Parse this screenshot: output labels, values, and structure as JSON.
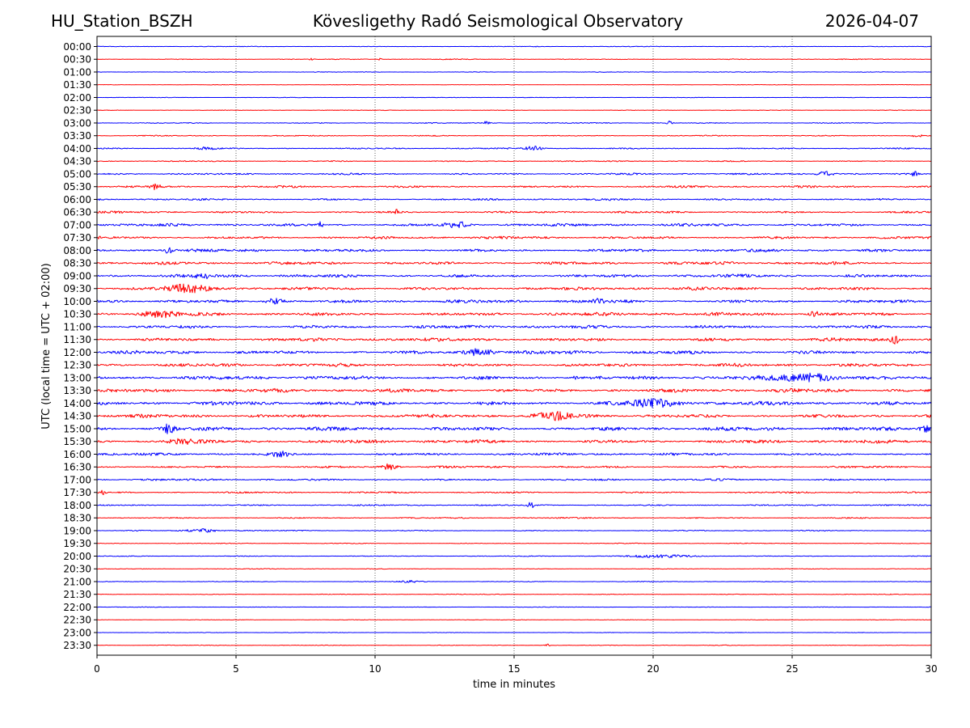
{
  "header": {
    "station": "HU_Station_BSZH",
    "observatory": "Kövesligethy Radó Seismological Observatory",
    "date": "2026-04-07"
  },
  "chart_data": {
    "type": "line",
    "title": "Kövesligethy Radó Seismological Observatory",
    "xlabel": "time in minutes",
    "ylabel": "UTC (local time = UTC + 02:00)",
    "xlim": [
      0,
      30
    ],
    "x_ticks": [
      0,
      5,
      10,
      15,
      20,
      25,
      30
    ],
    "grid": "vertical dotted lines at 5-minute ticks",
    "colors": [
      "#0000ff",
      "#ff0000"
    ],
    "row_labels": [
      "00:00",
      "00:30",
      "01:00",
      "01:30",
      "02:00",
      "02:30",
      "03:00",
      "03:30",
      "04:00",
      "04:30",
      "05:00",
      "05:30",
      "06:00",
      "06:30",
      "07:00",
      "07:30",
      "08:00",
      "08:30",
      "09:00",
      "09:30",
      "10:00",
      "10:30",
      "11:00",
      "11:30",
      "12:00",
      "12:30",
      "13:00",
      "13:30",
      "14:00",
      "14:30",
      "15:00",
      "15:30",
      "16:00",
      "16:30",
      "17:00",
      "17:30",
      "18:00",
      "18:30",
      "19:00",
      "19:30",
      "20:00",
      "20:30",
      "21:00",
      "21:30",
      "22:00",
      "22:30",
      "23:00",
      "23:30"
    ],
    "noise_amplitude": [
      0.8,
      1.0,
      0.8,
      0.6,
      0.7,
      0.7,
      1.2,
      1.3,
      1.6,
      1.3,
      2.2,
      2.5,
      2.4,
      2.6,
      3.6,
      3.2,
      3.6,
      3.6,
      3.8,
      4.0,
      4.0,
      4.2,
      4.0,
      4.2,
      4.4,
      4.0,
      4.6,
      4.6,
      4.6,
      4.6,
      4.8,
      4.2,
      3.2,
      2.6,
      2.4,
      2.0,
      1.8,
      1.6,
      1.3,
      1.0,
      1.0,
      0.8,
      0.9,
      0.9,
      0.7,
      0.7,
      0.7,
      0.8
    ],
    "events": [
      {
        "row": 0,
        "minute": 15.8,
        "amp": 2,
        "width": 0.05
      },
      {
        "row": 1,
        "minute": 7.7,
        "amp": 3,
        "width": 0.05
      },
      {
        "row": 1,
        "minute": 10.2,
        "amp": 2.5,
        "width": 0.1
      },
      {
        "row": 6,
        "minute": 14,
        "amp": 4,
        "width": 0.1
      },
      {
        "row": 6,
        "minute": 20.6,
        "amp": 5,
        "width": 0.1
      },
      {
        "row": 7,
        "minute": 29.5,
        "amp": 3,
        "width": 0.2
      },
      {
        "row": 8,
        "minute": 3.9,
        "amp": 3,
        "width": 0.4
      },
      {
        "row": 8,
        "minute": 15.7,
        "amp": 5,
        "width": 0.3
      },
      {
        "row": 10,
        "minute": 26.2,
        "amp": 6,
        "width": 0.3
      },
      {
        "row": 10,
        "minute": 29.4,
        "amp": 7,
        "width": 0.1
      },
      {
        "row": 11,
        "minute": 2.1,
        "amp": 6,
        "width": 0.2
      },
      {
        "row": 13,
        "minute": 10.8,
        "amp": 5,
        "width": 0.1
      },
      {
        "row": 14,
        "minute": 8,
        "amp": 8,
        "width": 0.1
      },
      {
        "row": 14,
        "minute": 13,
        "amp": 6,
        "width": 0.4
      },
      {
        "row": 16,
        "minute": 2.6,
        "amp": 7,
        "width": 0.2
      },
      {
        "row": 18,
        "minute": 3.8,
        "amp": 8,
        "width": 0.2
      },
      {
        "row": 19,
        "minute": 3.3,
        "amp": 7,
        "width": 0.8
      },
      {
        "row": 20,
        "minute": 6.4,
        "amp": 7,
        "width": 0.3
      },
      {
        "row": 20,
        "minute": 18,
        "amp": 7,
        "width": 0.2
      },
      {
        "row": 21,
        "minute": 2.3,
        "amp": 6,
        "width": 0.7
      },
      {
        "row": 21,
        "minute": 25.8,
        "amp": 6,
        "width": 0.2
      },
      {
        "row": 23,
        "minute": 28.7,
        "amp": 8,
        "width": 0.2
      },
      {
        "row": 24,
        "minute": 13.8,
        "amp": 8,
        "width": 0.5
      },
      {
        "row": 26,
        "minute": 17.2,
        "amp": 14,
        "width": 0.05
      },
      {
        "row": 26,
        "minute": 25.5,
        "amp": 9,
        "width": 1.0
      },
      {
        "row": 28,
        "minute": 20,
        "amp": 7,
        "width": 1.0
      },
      {
        "row": 29,
        "minute": 16.5,
        "amp": 7,
        "width": 0.6
      },
      {
        "row": 30,
        "minute": 2.6,
        "amp": 11,
        "width": 0.2
      },
      {
        "row": 30,
        "minute": 29.8,
        "amp": 9,
        "width": 0.2
      },
      {
        "row": 31,
        "minute": 3,
        "amp": 6,
        "width": 0.5
      },
      {
        "row": 32,
        "minute": 6.6,
        "amp": 5,
        "width": 0.3
      },
      {
        "row": 33,
        "minute": 10.5,
        "amp": 6,
        "width": 0.3
      },
      {
        "row": 35,
        "minute": 0.2,
        "amp": 5,
        "width": 0.1
      },
      {
        "row": 36,
        "minute": 15.6,
        "amp": 7,
        "width": 0.1
      },
      {
        "row": 38,
        "minute": 3.8,
        "amp": 4,
        "width": 0.6
      },
      {
        "row": 40,
        "minute": 20.3,
        "amp": 3,
        "width": 1.2
      },
      {
        "row": 42,
        "minute": 11.3,
        "amp": 2.5,
        "width": 0.5
      },
      {
        "row": 47,
        "minute": 16.2,
        "amp": 3,
        "width": 0.1
      }
    ]
  }
}
